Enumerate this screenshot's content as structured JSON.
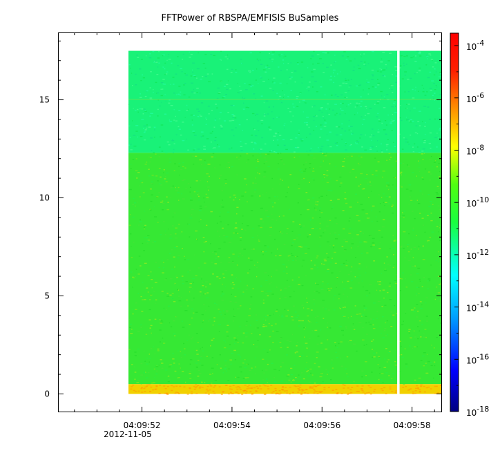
{
  "chart_data": {
    "type": "heatmap",
    "title": "FFTPower of RBSPA/EMFISIS  BuSamples",
    "xlabel": "",
    "ylabel": "",
    "x_date_label": "2012-11-05",
    "x_ticks": [
      "04:09:52",
      "04:09:54",
      "04:09:56",
      "04:09:58"
    ],
    "x_range": [
      "04:09:50.15",
      "04:09:58.65"
    ],
    "data_x_range": [
      "04:09:51.7",
      "04:09:58.65"
    ],
    "gap_at": "04:09:57.7",
    "y_ticks": [
      0,
      5,
      10,
      15
    ],
    "ylim": [
      -0.9,
      18.4
    ],
    "data_ylim": [
      0,
      17.5
    ],
    "colorbar": {
      "scale": "log",
      "range": [
        "1e-18",
        "3e-4"
      ],
      "ticks": [
        {
          "base": "10",
          "exp": "-4",
          "value": -4
        },
        {
          "base": "10",
          "exp": "-6",
          "value": -6
        },
        {
          "base": "10",
          "exp": "-8",
          "value": -8
        },
        {
          "base": "10",
          "exp": "-10",
          "value": -10
        },
        {
          "base": "10",
          "exp": "-12",
          "value": -12
        },
        {
          "base": "10",
          "exp": "-14",
          "value": -14
        },
        {
          "base": "10",
          "exp": "-16",
          "value": -16
        },
        {
          "base": "10",
          "exp": "-18",
          "value": -18
        }
      ]
    },
    "bands": [
      {
        "y_from": 12.3,
        "y_to": 17.5,
        "color": "#19f278",
        "label": "upper band ~1e-11"
      },
      {
        "y_from": 0.5,
        "y_to": 12.3,
        "color": "#36e834",
        "label": "middle band ~1e-10"
      },
      {
        "y_from": 0,
        "y_to": 0.5,
        "color": "#f2d000",
        "label": "low band ~1e-8"
      }
    ]
  }
}
